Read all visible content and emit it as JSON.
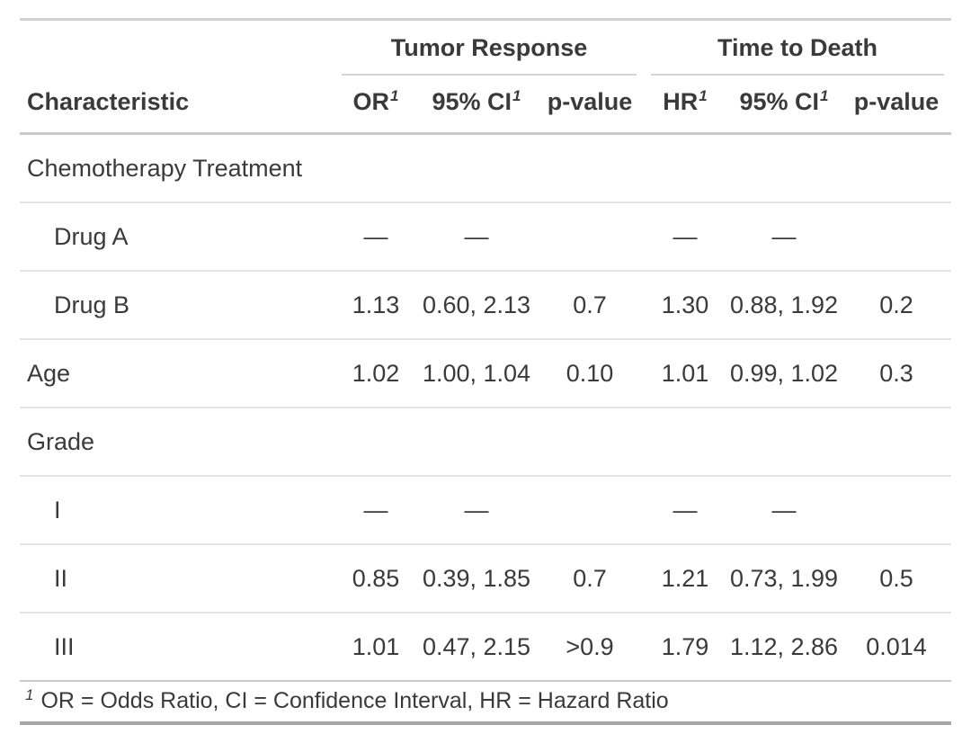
{
  "colors": {
    "background": "#ffffff",
    "text": "#3a3a3a",
    "border_light": "#e3e3e3",
    "border_medium": "#c9c9c9",
    "border_top": "#d0d0d0",
    "border_bottom": "#a6a6a6"
  },
  "table": {
    "spanners": {
      "tumor": "Tumor Response",
      "death": "Time to Death"
    },
    "footnote_mark": "1",
    "columns": {
      "characteristic": "Characteristic",
      "or": "OR",
      "ci": "95% CI",
      "p": "p-value",
      "hr": "HR"
    },
    "rows": [
      {
        "label": "Chemotherapy Treatment",
        "or": "",
        "or_ci": "",
        "or_p": "",
        "hr": "",
        "hr_ci": "",
        "hr_p": ""
      },
      {
        "label": "Drug A",
        "or": "—",
        "or_ci": "—",
        "or_p": "",
        "hr": "—",
        "hr_ci": "—",
        "hr_p": ""
      },
      {
        "label": "Drug B",
        "or": "1.13",
        "or_ci": "0.60, 2.13",
        "or_p": "0.7",
        "hr": "1.30",
        "hr_ci": "0.88, 1.92",
        "hr_p": "0.2"
      },
      {
        "label": "Age",
        "or": "1.02",
        "or_ci": "1.00, 1.04",
        "or_p": "0.10",
        "hr": "1.01",
        "hr_ci": "0.99, 1.02",
        "hr_p": "0.3"
      },
      {
        "label": "Grade",
        "or": "",
        "or_ci": "",
        "or_p": "",
        "hr": "",
        "hr_ci": "",
        "hr_p": ""
      },
      {
        "label": "I",
        "or": "—",
        "or_ci": "—",
        "or_p": "",
        "hr": "—",
        "hr_ci": "—",
        "hr_p": ""
      },
      {
        "label": "II",
        "or": "0.85",
        "or_ci": "0.39, 1.85",
        "or_p": "0.7",
        "hr": "1.21",
        "hr_ci": "0.73, 1.99",
        "hr_p": "0.5"
      },
      {
        "label": "III",
        "or": "1.01",
        "or_ci": "0.47, 2.15",
        "or_p": ">0.9",
        "hr": "1.79",
        "hr_ci": "1.12, 2.86",
        "hr_p": "0.014"
      }
    ],
    "footnote": "OR = Odds Ratio, CI = Confidence Interval, HR = Hazard Ratio"
  },
  "chart_data": {
    "type": "table",
    "title": "",
    "column_groups": [
      "Tumor Response",
      "Time to Death"
    ],
    "columns": [
      "Characteristic",
      "OR",
      "95% CI",
      "p-value",
      "HR",
      "95% CI",
      "p-value"
    ],
    "rows": [
      [
        "Chemotherapy Treatment",
        "",
        "",
        "",
        "",
        "",
        ""
      ],
      [
        "Drug A",
        "—",
        "—",
        "",
        "—",
        "—",
        ""
      ],
      [
        "Drug B",
        "1.13",
        "0.60, 2.13",
        "0.7",
        "1.30",
        "0.88, 1.92",
        "0.2"
      ],
      [
        "Age",
        "1.02",
        "1.00, 1.04",
        "0.10",
        "1.01",
        "0.99, 1.02",
        "0.3"
      ],
      [
        "Grade",
        "",
        "",
        "",
        "",
        "",
        ""
      ],
      [
        "I",
        "—",
        "—",
        "",
        "—",
        "—",
        ""
      ],
      [
        "II",
        "0.85",
        "0.39, 1.85",
        "0.7",
        "1.21",
        "0.73, 1.99",
        "0.5"
      ],
      [
        "III",
        "1.01",
        "0.47, 2.15",
        ">0.9",
        "1.79",
        "1.12, 2.86",
        "0.014"
      ]
    ],
    "footnote": "1 OR = Odds Ratio, CI = Confidence Interval, HR = Hazard Ratio"
  }
}
